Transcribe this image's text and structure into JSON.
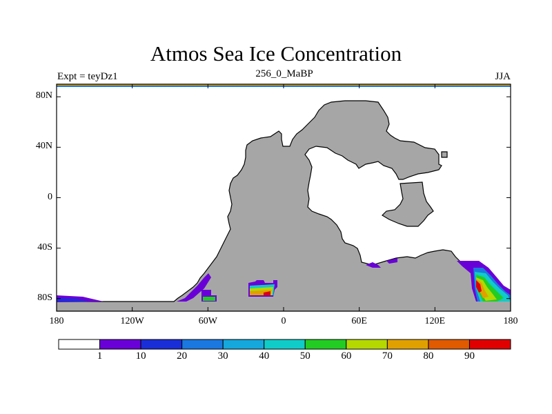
{
  "title": "Atmos Sea Ice Concentration",
  "subtitle_left": "Expt = teyDz1",
  "subtitle_center": "256_0_MaBP",
  "subtitle_right": "JJA",
  "axes": {
    "y_ticks": [
      {
        "label": "80N",
        "lat": 80
      },
      {
        "label": "40N",
        "lat": 40
      },
      {
        "label": "0",
        "lat": 0
      },
      {
        "label": "40S",
        "lat": -40
      },
      {
        "label": "80S",
        "lat": -80
      }
    ],
    "x_ticks": [
      {
        "label": "180",
        "lon": -180
      },
      {
        "label": "120W",
        "lon": -120
      },
      {
        "label": "60W",
        "lon": -60
      },
      {
        "label": "0",
        "lon": 0
      },
      {
        "label": "60E",
        "lon": 60
      },
      {
        "label": "120E",
        "lon": 120
      },
      {
        "label": "180",
        "lon": 180
      }
    ],
    "lon_range": [
      -180,
      180
    ],
    "lat_range": [
      -90,
      90
    ]
  },
  "colorbar": {
    "levels": [
      "1",
      "10",
      "20",
      "30",
      "40",
      "50",
      "60",
      "70",
      "80",
      "90"
    ],
    "colors": [
      "#ffffff",
      "#6a00d8",
      "#1a2ed8",
      "#1a78e0",
      "#14a8dc",
      "#10ccc8",
      "#22cc22",
      "#b4d800",
      "#e0a000",
      "#e05a00",
      "#e00000"
    ]
  },
  "colors": {
    "land": "#a6a6a6",
    "land_outline": "#000000",
    "ocean": "#ffffff"
  }
}
